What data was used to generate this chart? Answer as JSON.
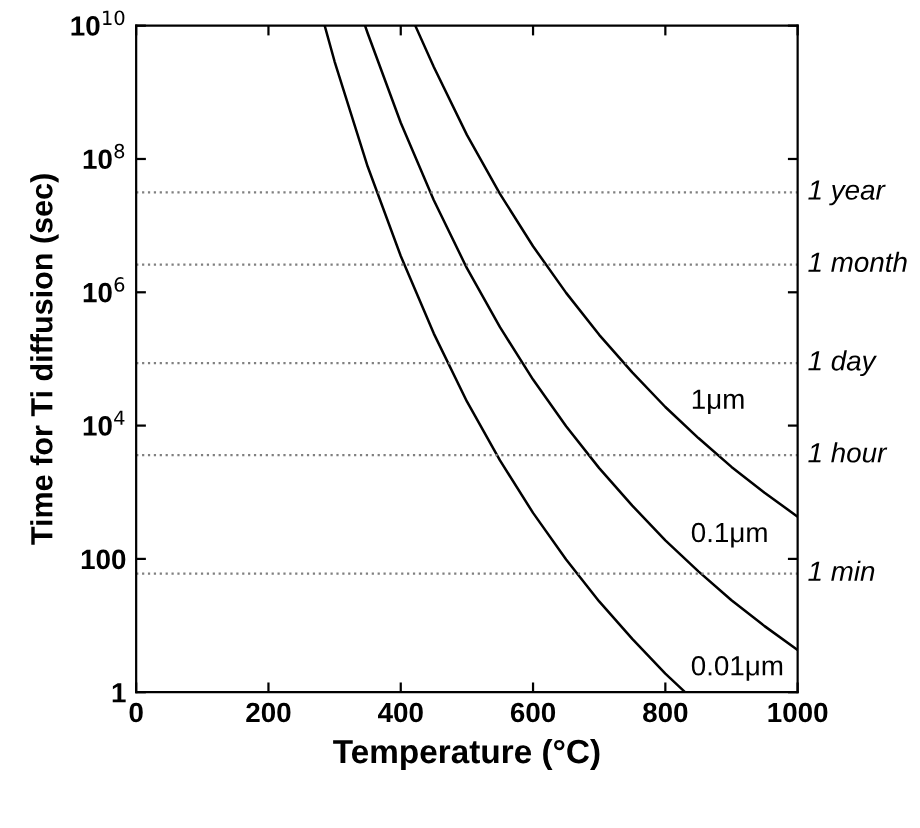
{
  "chart_data": {
    "type": "line",
    "xlabel": "Temperature (°C)",
    "ylabel": "Time for Ti diffusion (sec)",
    "log": "y",
    "xlim": [
      0,
      1000
    ],
    "xticks": [
      0,
      200,
      400,
      600,
      800,
      1000
    ],
    "ylim": [
      1,
      10000000000
    ],
    "yticks": [
      1,
      100,
      {
        "value": 10000,
        "label": "10$^{4}$"
      },
      {
        "value": 1000000,
        "label": "10$^{6}$"
      },
      {
        "value": 100000000,
        "label": "10$^{8}$"
      },
      {
        "value": 10000000000,
        "label": "10$^{10}$"
      }
    ],
    "grid": false,
    "legend": false,
    "marker": "none",
    "line_style": "solid",
    "series": [
      {
        "name": "0.01μm",
        "color": "#000000",
        "x": [
          285,
          300,
          350,
          400,
          450,
          500,
          550,
          600,
          650,
          700,
          750,
          800,
          830
        ],
        "values": [
          10000000000,
          2900000000,
          77000000,
          3500000,
          240000,
          23000,
          3000,
          490,
          98,
          23,
          6.3,
          1.9,
          1
        ]
      },
      {
        "name": "0.1μm",
        "color": "#000000",
        "x": [
          346,
          350,
          400,
          450,
          500,
          550,
          600,
          650,
          700,
          750,
          800,
          850,
          900,
          950,
          1000
        ],
        "values": [
          10000000000,
          7700000000,
          350000000,
          24000000,
          2300000,
          300000,
          49000,
          9800,
          2300,
          630,
          190,
          65,
          24,
          9.8,
          4.3
        ]
      },
      {
        "name": "1μm",
        "color": "#000000",
        "x": [
          422,
          450,
          500,
          550,
          600,
          650,
          700,
          750,
          800,
          850,
          900,
          950,
          1000
        ],
        "values": [
          10000000000,
          2400000000,
          230000000,
          30000000,
          4900000,
          980000,
          230000,
          63000,
          19000,
          6500,
          2400,
          980,
          430
        ]
      }
    ],
    "ref_lines": [
      {
        "axis": "y",
        "value": 31500000,
        "label": "1 year",
        "color": "#808080",
        "line_style": "dotted"
      },
      {
        "axis": "y",
        "value": 2600000,
        "label": "1 month",
        "color": "#808080",
        "line_style": "dotted"
      },
      {
        "axis": "y",
        "value": 86400,
        "label": "1 day",
        "color": "#808080",
        "line_style": "dotted"
      },
      {
        "axis": "y",
        "value": 3600,
        "label": "1 hour",
        "color": "#808080",
        "line_style": "dotted"
      },
      {
        "axis": "y",
        "value": 60,
        "label": "1 min",
        "color": "#808080",
        "line_style": "dotted"
      }
    ]
  }
}
